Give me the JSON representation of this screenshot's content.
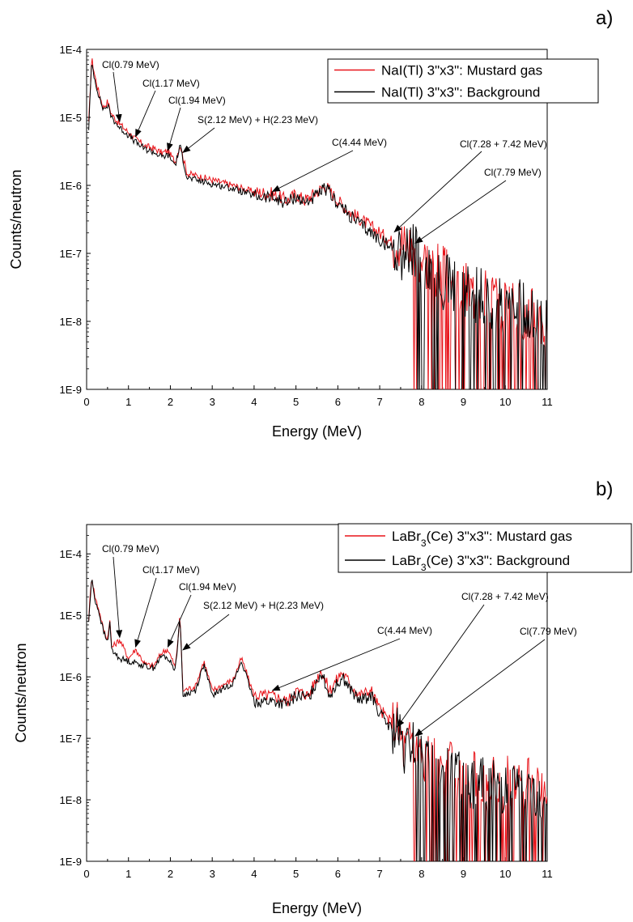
{
  "chart_data": [
    {
      "type": "line",
      "panel_label": "a)",
      "xlabel": "Energy (MeV)",
      "ylabel": "Counts/neutron",
      "xlim": [
        0,
        11
      ],
      "ylim": [
        1e-09,
        0.0001
      ],
      "yscale": "log",
      "xticks": [
        "0",
        "1",
        "2",
        "3",
        "4",
        "5",
        "6",
        "7",
        "8",
        "9",
        "10",
        "11"
      ],
      "yticks": [
        "1E-9",
        "1E-8",
        "1E-7",
        "1E-6",
        "1E-5",
        "1E-4"
      ],
      "legend_position": "top-right",
      "series": [
        {
          "name": "NaI(Tl) 3\"x3\": Mustard gas",
          "color": "#e8141a",
          "x": [
            0.05,
            0.12,
            0.2,
            0.3,
            0.4,
            0.5,
            0.6,
            0.79,
            1.0,
            1.17,
            1.4,
            1.6,
            1.8,
            1.94,
            2.12,
            2.23,
            2.4,
            2.6,
            3.0,
            3.5,
            4.0,
            4.44,
            4.8,
            5.0,
            5.2,
            5.5,
            5.7,
            6.0,
            6.3,
            6.6,
            7.0,
            7.28,
            7.42,
            7.6,
            7.79,
            8.0,
            8.5,
            9.0,
            10.0,
            11.0
          ],
          "y": [
            8e-06,
            7.5e-05,
            4e-05,
            2.2e-05,
            1.4e-05,
            1.7e-05,
            1.1e-05,
            8e-06,
            6e-06,
            4.8e-06,
            3.8e-06,
            3.5e-06,
            3e-06,
            3.2e-06,
            2.2e-06,
            4e-06,
            1.5e-06,
            1.4e-06,
            1.2e-06,
            1e-06,
            8e-07,
            7.5e-07,
            6e-07,
            7.5e-07,
            6e-07,
            8e-07,
            1e-06,
            6e-07,
            4e-07,
            3e-07,
            2e-07,
            1.5e-07,
            1.8e-07,
            1.2e-07,
            1.5e-07,
            9e-08,
            5e-08,
            3e-08,
            2e-08,
            1e-08
          ]
        },
        {
          "name": "NaI(Tl) 3\"x3\": Background",
          "color": "#000000",
          "x": [
            0.05,
            0.12,
            0.2,
            0.3,
            0.4,
            0.5,
            0.6,
            0.79,
            1.0,
            1.17,
            1.4,
            1.6,
            1.8,
            1.94,
            2.12,
            2.23,
            2.4,
            2.6,
            3.0,
            3.5,
            4.0,
            4.44,
            4.8,
            5.0,
            5.2,
            5.5,
            5.7,
            6.0,
            6.3,
            6.6,
            7.0,
            7.28,
            7.42,
            7.6,
            7.79,
            8.0,
            8.5,
            9.0,
            10.0,
            11.0
          ],
          "y": [
            7e-06,
            6.5e-05,
            3.5e-05,
            2e-05,
            1.3e-05,
            1.5e-05,
            1e-05,
            7e-06,
            5.5e-06,
            4.3e-06,
            3.4e-06,
            3.1e-06,
            2.6e-06,
            2.8e-06,
            2e-06,
            3.8e-06,
            1.3e-06,
            1.2e-06,
            1.05e-06,
            9e-07,
            7e-07,
            6.5e-07,
            5.5e-07,
            7e-07,
            5.5e-07,
            7e-07,
            9e-07,
            5.5e-07,
            3.5e-07,
            2.5e-07,
            1.6e-07,
            1.2e-07,
            1.3e-07,
            1e-07,
            1.1e-07,
            7e-08,
            4e-08,
            2.5e-08,
            1.8e-08,
            1e-08
          ]
        }
      ],
      "annotations": [
        {
          "text": "Cl(0.79 MeV)",
          "x": 0.79,
          "y": 8e-06
        },
        {
          "text": "Cl(1.17 MeV)",
          "x": 1.17,
          "y": 4.8e-06
        },
        {
          "text": "Cl(1.94 MeV)",
          "x": 1.94,
          "y": 3e-06
        },
        {
          "text": "S(2.12 MeV) + H(2.23 MeV)",
          "x": 2.3,
          "y": 2.8e-06
        },
        {
          "text": "C(4.44 MeV)",
          "x": 4.44,
          "y": 7.5e-07
        },
        {
          "text": "Cl(7.28 + 7.42 MeV)",
          "x": 7.35,
          "y": 1.9e-07
        },
        {
          "text": "Cl(7.79 MeV)",
          "x": 7.85,
          "y": 1.3e-07
        }
      ]
    },
    {
      "type": "line",
      "panel_label": "b)",
      "xlabel": "Energy (MeV)",
      "ylabel": "Counts/neutron",
      "xlim": [
        0,
        11
      ],
      "ylim": [
        1e-09,
        0.0003
      ],
      "yscale": "log",
      "xticks": [
        "0",
        "1",
        "2",
        "3",
        "4",
        "5",
        "6",
        "7",
        "8",
        "9",
        "10",
        "11"
      ],
      "yticks": [
        "1E-9",
        "1E-8",
        "1E-7",
        "1E-6",
        "1E-5",
        "1E-4"
      ],
      "legend_position": "top-right",
      "series": [
        {
          "name": "LaBr3(Ce) 3\"x3\": Mustard gas",
          "color": "#e8141a",
          "x": [
            0.05,
            0.12,
            0.2,
            0.3,
            0.4,
            0.5,
            0.55,
            0.6,
            0.79,
            1.0,
            1.17,
            1.4,
            1.6,
            1.8,
            1.94,
            2.12,
            2.23,
            2.3,
            2.6,
            2.8,
            3.0,
            3.5,
            3.7,
            4.0,
            4.44,
            4.8,
            5.0,
            5.3,
            5.6,
            5.8,
            6.1,
            6.5,
            6.8,
            7.0,
            7.28,
            7.42,
            7.6,
            7.79,
            8.0,
            8.5,
            9.0,
            10.0,
            11.0
          ],
          "y": [
            9e-06,
            4.5e-05,
            2e-05,
            1.2e-05,
            6e-06,
            4e-06,
            9e-06,
            3e-06,
            4e-06,
            2e-06,
            2.8e-06,
            1.6e-06,
            1.5e-06,
            2.5e-06,
            2.8e-06,
            1.4e-06,
            1e-05,
            6e-07,
            7e-07,
            1.8e-06,
            6e-07,
            9e-07,
            2e-06,
            5e-07,
            5e-07,
            4e-07,
            6e-07,
            5e-07,
            1.3e-06,
            6e-07,
            1.2e-06,
            5e-07,
            6e-07,
            3e-07,
            1.8e-07,
            1.6e-07,
            6e-08,
            1.1e-07,
            5e-08,
            3.5e-08,
            2.5e-08,
            2e-08,
            1.5e-08
          ]
        },
        {
          "name": "LaBr3(Ce) 3\"x3\": Background",
          "color": "#000000",
          "x": [
            0.05,
            0.12,
            0.2,
            0.3,
            0.4,
            0.5,
            0.55,
            0.6,
            0.79,
            1.0,
            1.17,
            1.4,
            1.6,
            1.8,
            1.94,
            2.12,
            2.23,
            2.3,
            2.6,
            2.8,
            3.0,
            3.5,
            3.7,
            4.0,
            4.44,
            4.8,
            5.0,
            5.3,
            5.6,
            5.8,
            6.1,
            6.5,
            6.8,
            7.0,
            7.28,
            7.42,
            7.6,
            7.79,
            8.0,
            8.5,
            9.0,
            10.0,
            11.0
          ],
          "y": [
            8e-06,
            4e-05,
            1.8e-05,
            1.1e-05,
            5.5e-06,
            3.6e-06,
            8e-06,
            2.7e-06,
            2e-06,
            1.8e-06,
            1.7e-06,
            1.5e-06,
            1.4e-06,
            2.2e-06,
            2e-06,
            1.3e-06,
            1e-05,
            5e-07,
            6e-07,
            1.6e-06,
            5e-07,
            8e-07,
            1.8e-06,
            4e-07,
            4e-07,
            3.5e-07,
            5e-07,
            4.5e-07,
            1.2e-06,
            5e-07,
            1e-06,
            4e-07,
            5e-07,
            2.5e-07,
            1.4e-07,
            1.2e-07,
            5e-08,
            9e-08,
            4e-08,
            3e-08,
            2e-08,
            1.5e-08,
            1.2e-08
          ]
        }
      ],
      "annotations": [
        {
          "text": "Cl(0.79 MeV)",
          "x": 0.79,
          "y": 4e-06
        },
        {
          "text": "Cl(1.17 MeV)",
          "x": 1.17,
          "y": 2.8e-06
        },
        {
          "text": "Cl(1.94 MeV)",
          "x": 1.94,
          "y": 2.8e-06
        },
        {
          "text": "S(2.12 MeV) + H(2.23 MeV)",
          "x": 2.3,
          "y": 2.5e-06
        },
        {
          "text": "C(4.44 MeV)",
          "x": 4.44,
          "y": 5.5e-07
        },
        {
          "text": "Cl(7.28 + 7.42 MeV)",
          "x": 7.42,
          "y": 1.4e-07
        },
        {
          "text": "Cl(7.79 MeV)",
          "x": 7.85,
          "y": 1e-07
        }
      ]
    }
  ]
}
